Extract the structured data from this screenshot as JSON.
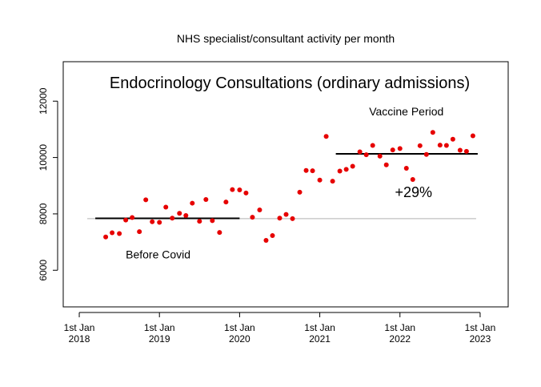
{
  "chart_data": {
    "type": "scatter",
    "title": "NHS specialist/consultant activity per month",
    "subtitle": "Endocrinology Consultations (ordinary admissions)",
    "xlabel": "",
    "ylabel": "",
    "ylim": [
      4700,
      13400
    ],
    "yticks": [
      6000,
      8000,
      10000,
      12000
    ],
    "xticks": [
      {
        "year": 2018,
        "l1": "1st Jan",
        "l2": "2018"
      },
      {
        "year": 2019,
        "l1": "1st Jan",
        "l2": "2019"
      },
      {
        "year": 2020,
        "l1": "1st Jan",
        "l2": "2020"
      },
      {
        "year": 2021,
        "l1": "1st Jan",
        "l2": "2021"
      },
      {
        "year": 2022,
        "l1": "1st Jan",
        "l2": "2022"
      },
      {
        "year": 2023,
        "l1": "1st Jan",
        "l2": "2023"
      }
    ],
    "xlim": [
      2017.8,
      2023.35
    ],
    "series": [
      {
        "name": "Monthly consultations",
        "color": "#e60000",
        "points": [
          {
            "x": 2018.33,
            "y": 7180
          },
          {
            "x": 2018.41,
            "y": 7330
          },
          {
            "x": 2018.5,
            "y": 7300
          },
          {
            "x": 2018.58,
            "y": 7780
          },
          {
            "x": 2018.66,
            "y": 7870
          },
          {
            "x": 2018.75,
            "y": 7370
          },
          {
            "x": 2018.83,
            "y": 8500
          },
          {
            "x": 2018.91,
            "y": 7720
          },
          {
            "x": 2019.0,
            "y": 7700
          },
          {
            "x": 2019.08,
            "y": 8240
          },
          {
            "x": 2019.16,
            "y": 7850
          },
          {
            "x": 2019.25,
            "y": 8020
          },
          {
            "x": 2019.33,
            "y": 7940
          },
          {
            "x": 2019.41,
            "y": 8380
          },
          {
            "x": 2019.5,
            "y": 7740
          },
          {
            "x": 2019.58,
            "y": 8510
          },
          {
            "x": 2019.66,
            "y": 7760
          },
          {
            "x": 2019.75,
            "y": 7340
          },
          {
            "x": 2019.83,
            "y": 8420
          },
          {
            "x": 2019.91,
            "y": 8860
          },
          {
            "x": 2020.0,
            "y": 8850
          },
          {
            "x": 2020.08,
            "y": 8740
          },
          {
            "x": 2020.16,
            "y": 7880
          },
          {
            "x": 2020.25,
            "y": 8140
          },
          {
            "x": 2020.33,
            "y": 7060
          },
          {
            "x": 2020.41,
            "y": 7230
          },
          {
            "x": 2020.5,
            "y": 7850
          },
          {
            "x": 2020.58,
            "y": 7980
          },
          {
            "x": 2020.66,
            "y": 7830
          },
          {
            "x": 2020.75,
            "y": 8770
          },
          {
            "x": 2020.83,
            "y": 9540
          },
          {
            "x": 2020.91,
            "y": 9530
          },
          {
            "x": 2021.0,
            "y": 9200
          },
          {
            "x": 2021.08,
            "y": 10750
          },
          {
            "x": 2021.16,
            "y": 9160
          },
          {
            "x": 2021.25,
            "y": 9520
          },
          {
            "x": 2021.33,
            "y": 9580
          },
          {
            "x": 2021.41,
            "y": 9690
          },
          {
            "x": 2021.5,
            "y": 10200
          },
          {
            "x": 2021.58,
            "y": 10100
          },
          {
            "x": 2021.66,
            "y": 10430
          },
          {
            "x": 2021.75,
            "y": 10050
          },
          {
            "x": 2021.83,
            "y": 9740
          },
          {
            "x": 2021.91,
            "y": 10270
          },
          {
            "x": 2022.0,
            "y": 10320
          },
          {
            "x": 2022.08,
            "y": 9620
          },
          {
            "x": 2022.16,
            "y": 9220
          },
          {
            "x": 2022.25,
            "y": 10420
          },
          {
            "x": 2022.33,
            "y": 10110
          },
          {
            "x": 2022.41,
            "y": 10890
          },
          {
            "x": 2022.5,
            "y": 10440
          },
          {
            "x": 2022.58,
            "y": 10430
          },
          {
            "x": 2022.66,
            "y": 10650
          },
          {
            "x": 2022.75,
            "y": 10260
          },
          {
            "x": 2022.83,
            "y": 10220
          },
          {
            "x": 2022.91,
            "y": 10770
          }
        ]
      }
    ],
    "reference_lines": [
      {
        "name": "baseline",
        "color": "#c0c0c0",
        "x0": 2018.1,
        "x1": 2022.95,
        "y": 7830
      },
      {
        "name": "pre-covid mean",
        "color": "#000000",
        "x0": 2018.2,
        "x1": 2020.0,
        "y": 7840
      },
      {
        "name": "vaccine period mean",
        "color": "#000000",
        "x0": 2021.2,
        "x1": 2022.97,
        "y": 10130
      }
    ],
    "annotations": [
      {
        "text": "Before Covid",
        "x": 2018.58,
        "y": 6420,
        "anchor": "start",
        "size": "normal"
      },
      {
        "text": "Vaccine Period",
        "x": 2022.08,
        "y": 11500,
        "anchor": "middle",
        "size": "normal"
      },
      {
        "text": "+29%",
        "x": 2022.17,
        "y": 8590,
        "anchor": "middle",
        "size": "big"
      }
    ],
    "grid": false
  }
}
